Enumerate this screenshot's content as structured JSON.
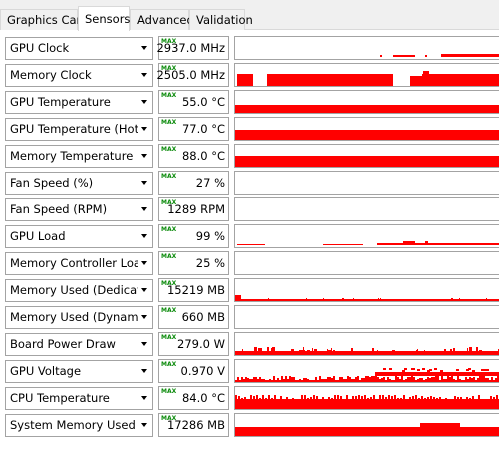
{
  "tabs": [
    {
      "label": "Graphics Card",
      "active": false
    },
    {
      "label": "Sensors",
      "active": true
    },
    {
      "label": "Advanced",
      "active": false
    },
    {
      "label": "Validation",
      "active": false
    }
  ],
  "max_tag": "MAX",
  "graph_color": "#ff0000",
  "sensors": [
    {
      "label": "GPU Clock",
      "value": "2937.0 MHz",
      "graph_level": 0.15,
      "pattern": "sparse"
    },
    {
      "label": "Memory Clock",
      "value": "2505.0 MHz",
      "graph_level": 0.55,
      "pattern": "blocks"
    },
    {
      "label": "GPU Temperature",
      "value": "55.0 °C",
      "graph_level": 0.35,
      "pattern": "solid"
    },
    {
      "label": "GPU Temperature (Hot Spot)",
      "value": "77.0 °C",
      "graph_level": 0.45,
      "pattern": "solid"
    },
    {
      "label": "Memory Temperature",
      "value": "88.0 °C",
      "graph_level": 0.5,
      "pattern": "solid"
    },
    {
      "label": "Fan Speed (%)",
      "value": "27 %",
      "graph_level": 0.0,
      "pattern": "none"
    },
    {
      "label": "Fan Speed (RPM)",
      "value": "1289 RPM",
      "graph_level": 0.0,
      "pattern": "none"
    },
    {
      "label": "GPU Load",
      "value": "99 %",
      "graph_level": 0.1,
      "pattern": "sparse-line"
    },
    {
      "label": "Memory Controller Load",
      "value": "25 %",
      "graph_level": 0.0,
      "pattern": "none"
    },
    {
      "label": "Memory Used (Dedicated)",
      "value": "15219 MB",
      "graph_level": 0.1,
      "pattern": "thin-line"
    },
    {
      "label": "Memory Used (Dynamic)",
      "value": "660 MB",
      "graph_level": 0.0,
      "pattern": "none"
    },
    {
      "label": "Board Power Draw",
      "value": "279.0 W",
      "graph_level": 0.15,
      "pattern": "thin-noisy"
    },
    {
      "label": "GPU Voltage",
      "value": "0.970 V",
      "graph_level": 0.35,
      "pattern": "noisy"
    },
    {
      "label": "CPU Temperature",
      "value": "84.0 °C",
      "graph_level": 0.5,
      "pattern": "noisy-solid"
    },
    {
      "label": "System Memory Used",
      "value": "17286 MB",
      "graph_level": 0.4,
      "pattern": "solid-notch"
    }
  ]
}
